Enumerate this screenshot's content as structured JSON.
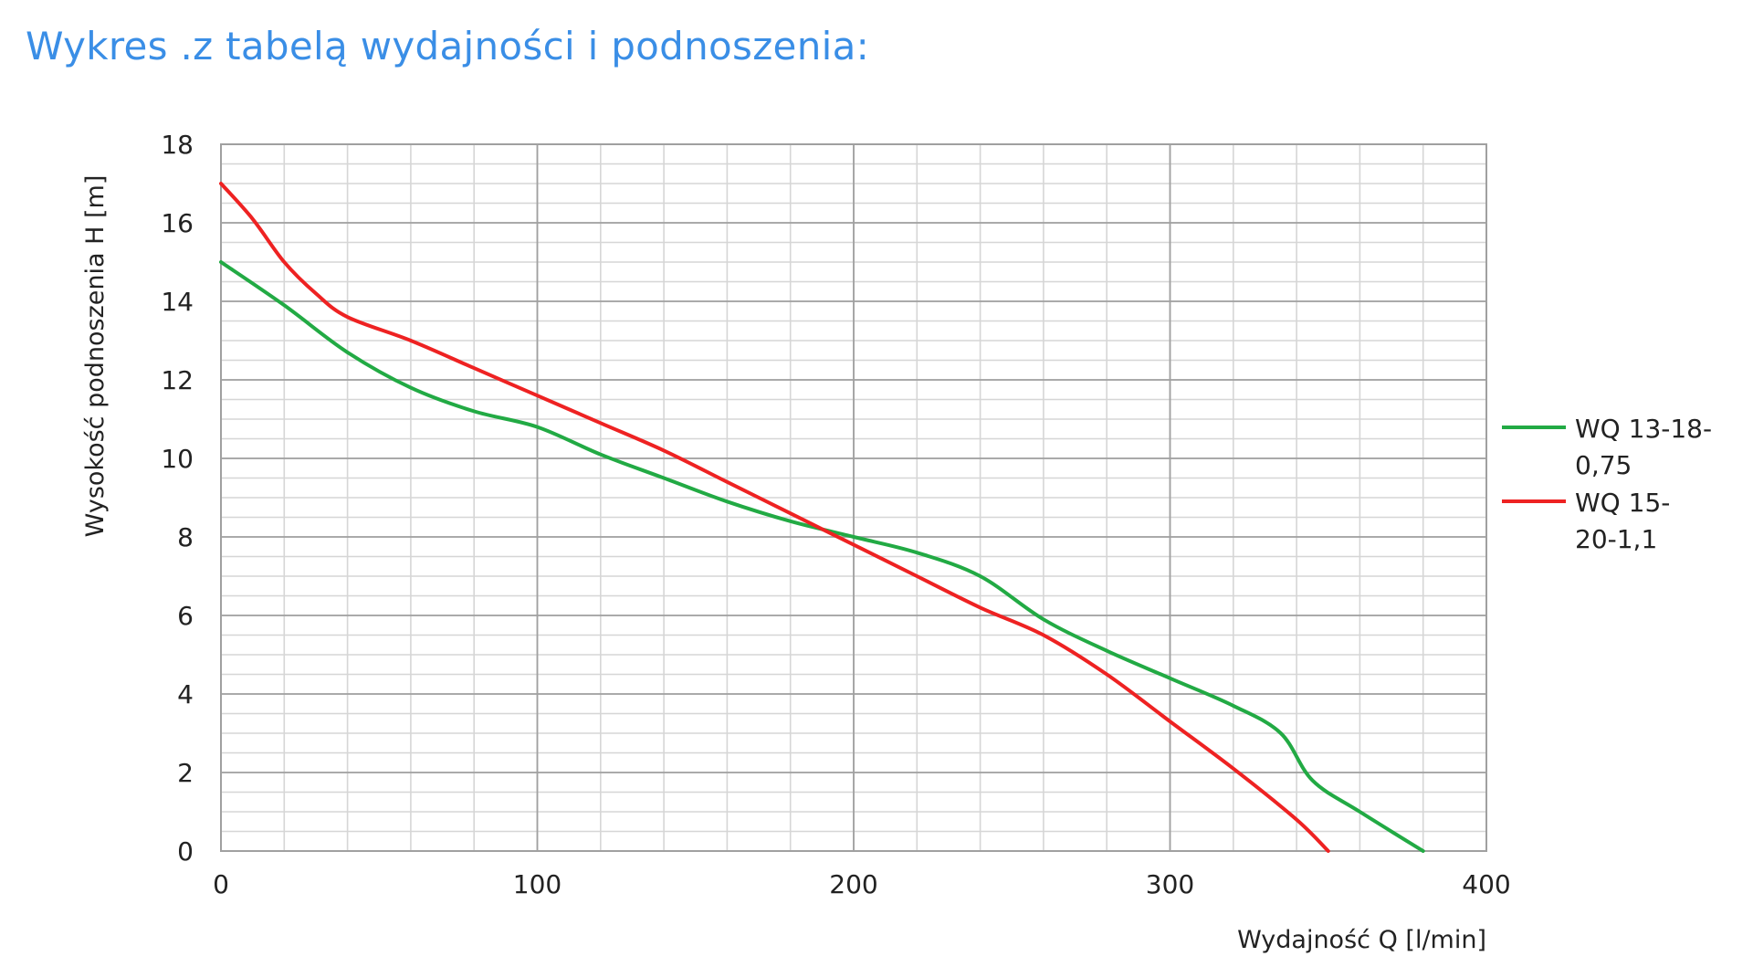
{
  "page_title": "Wykres .z tabelą wydajności i podnoszenia:",
  "chart_data": {
    "type": "line",
    "title": "",
    "xlabel": "Wydajność Q [l/min]",
    "ylabel": "Wysokość podnoszenia H [m]",
    "xlim": [
      0,
      400
    ],
    "ylim": [
      0,
      18
    ],
    "xticks": [
      0,
      100,
      200,
      300,
      400
    ],
    "yticks": [
      0,
      2,
      4,
      6,
      8,
      10,
      12,
      14,
      16,
      18
    ],
    "grid": true,
    "minor_grid": true,
    "legend_position": "right",
    "series": [
      {
        "name_lines": [
          "WQ 13-18-",
          "0,75"
        ],
        "color": "#22aa44",
        "x": [
          0,
          20,
          40,
          60,
          80,
          100,
          120,
          140,
          160,
          180,
          200,
          220,
          240,
          260,
          280,
          300,
          320,
          335,
          345,
          360,
          380
        ],
        "y": [
          15.0,
          13.9,
          12.7,
          11.8,
          11.2,
          10.8,
          10.1,
          9.5,
          8.9,
          8.4,
          8.0,
          7.6,
          7.0,
          5.9,
          5.1,
          4.4,
          3.7,
          3.0,
          1.8,
          1.0,
          0.0
        ]
      },
      {
        "name_lines": [
          "WQ 15-",
          "20-1,1"
        ],
        "color": "#ee2222",
        "x": [
          0,
          10,
          20,
          30,
          40,
          60,
          80,
          100,
          120,
          140,
          160,
          180,
          200,
          220,
          240,
          260,
          280,
          300,
          320,
          340,
          350
        ],
        "y": [
          17.0,
          16.1,
          15.0,
          14.2,
          13.6,
          13.0,
          12.3,
          11.6,
          10.9,
          10.2,
          9.4,
          8.6,
          7.8,
          7.0,
          6.2,
          5.5,
          4.5,
          3.3,
          2.1,
          0.8,
          0.0
        ]
      }
    ]
  }
}
